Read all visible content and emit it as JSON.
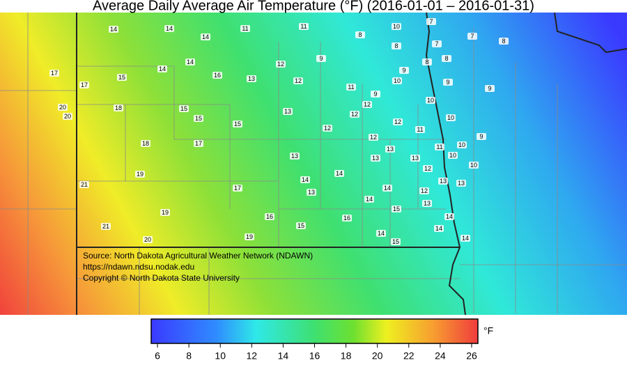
{
  "title": "Average Daily Average Air Temperature (°F) (2016-01-01 – 2016-01-31)",
  "source": [
    "Source: North Dakota Agricultural Weather Network (NDAWN)",
    "https://ndawn.ndsu.nodak.edu",
    "Copyright © North Dakota State University"
  ],
  "stations": [
    14,
    14,
    14,
    11,
    11,
    8,
    10,
    7,
    8,
    7,
    7,
    8,
    9,
    12,
    14,
    14,
    16,
    15,
    17,
    17,
    13,
    12,
    11,
    9,
    8,
    8,
    10,
    9,
    9,
    9,
    12,
    10,
    20,
    20,
    18,
    15,
    15,
    15,
    13,
    12,
    12,
    10,
    12,
    11,
    12,
    9,
    18,
    17,
    13,
    11,
    10,
    13,
    13,
    13,
    10,
    10,
    12,
    19,
    14,
    14,
    13,
    13,
    21,
    17,
    13,
    14,
    12,
    14,
    13,
    19,
    16,
    16,
    15,
    14,
    21,
    15,
    14,
    19,
    20,
    14,
    14,
    15
  ],
  "colorbar": {
    "unit": "°F",
    "lim": [
      5.6,
      26.4
    ],
    "ticks": [
      6,
      8,
      10,
      12,
      14,
      16,
      18,
      20,
      22,
      24,
      26
    ]
  }
}
